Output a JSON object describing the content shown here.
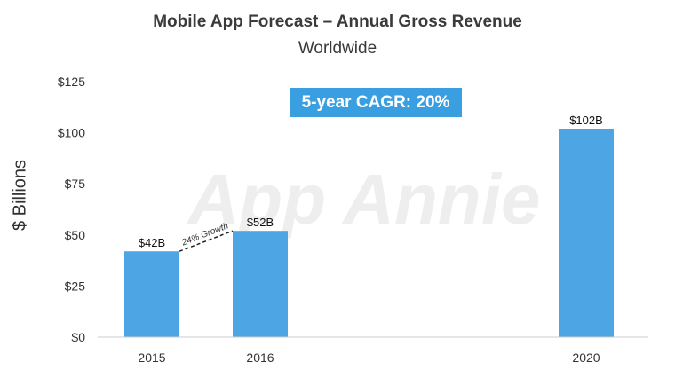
{
  "chart_data": {
    "type": "bar",
    "title": "Mobile App Forecast – Annual Gross Revenue",
    "subtitle": "Worldwide",
    "ylabel": "$ Billions",
    "xlabel": "",
    "ylim": [
      0,
      125
    ],
    "y_ticks": [
      "$0",
      "$25",
      "$50",
      "$75",
      "$100",
      "$125"
    ],
    "y_tick_values": [
      0,
      25,
      50,
      75,
      100,
      125
    ],
    "categories": [
      "2015",
      "2016",
      "2020"
    ],
    "values": [
      42,
      52,
      102
    ],
    "data_labels": [
      "$42B",
      "$52B",
      "$102B"
    ],
    "annotations": {
      "cagr": "5-year CAGR: 20%",
      "growth": "24% Growth"
    },
    "watermark": "App Annie",
    "bar_color": "#4ea5e3",
    "cagr_color": "#3a9fe0",
    "legend": "none",
    "grid": false
  }
}
